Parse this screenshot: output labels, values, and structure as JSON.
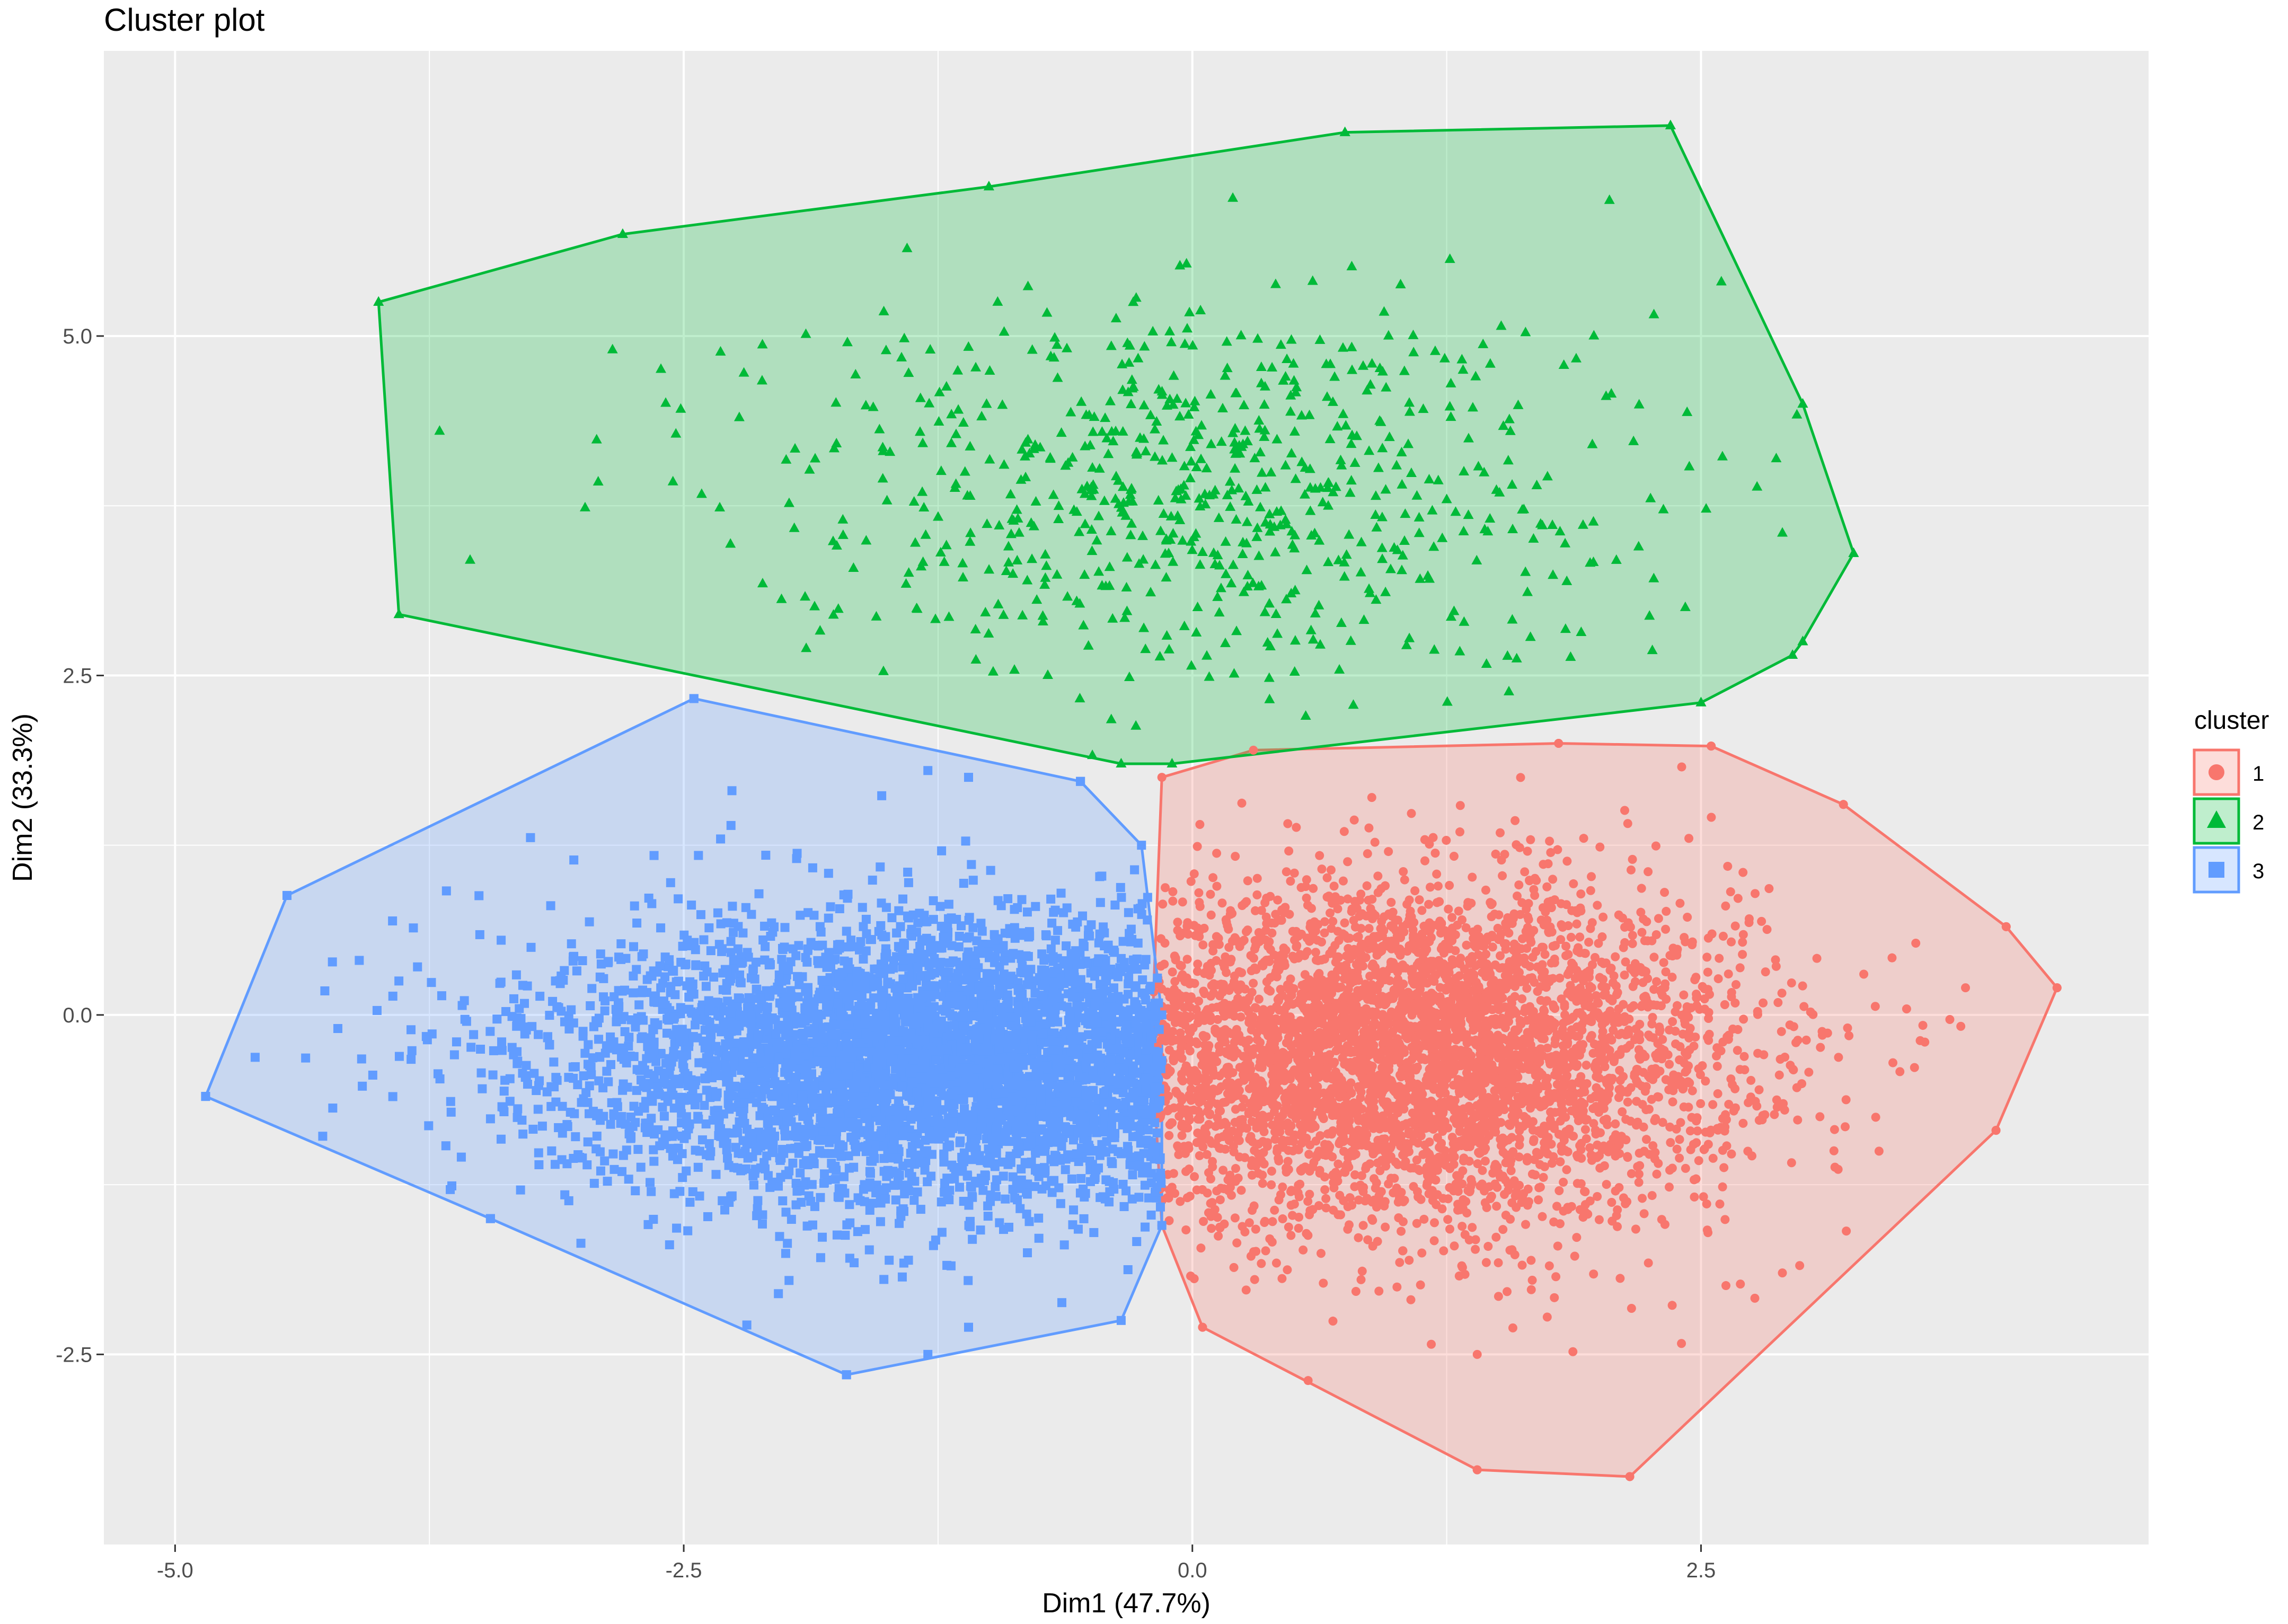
{
  "chart_data": {
    "type": "scatter",
    "title": "Cluster plot",
    "xlabel": "Dim1 (47.7%)",
    "ylabel": "Dim2 (33.3%)",
    "xlim": [
      -5.35,
      4.7
    ],
    "ylim": [
      -3.9,
      7.1
    ],
    "x_ticks": [
      -5.0,
      -2.5,
      0.0,
      2.5
    ],
    "x_tick_labels": [
      "-5.0",
      "-2.5",
      "0.0",
      "2.5"
    ],
    "y_ticks": [
      -2.5,
      0.0,
      2.5,
      5.0
    ],
    "y_tick_labels": [
      "-2.5",
      "0.0",
      "2.5",
      "5.0"
    ],
    "grid": true,
    "legend": {
      "title": "cluster",
      "position": "right",
      "entries": [
        "1",
        "2",
        "3"
      ]
    },
    "series": [
      {
        "name": "1",
        "color": "#F8766D",
        "marker": "circle",
        "hull": [
          [
            -0.15,
            1.75
          ],
          [
            0.3,
            1.95
          ],
          [
            1.8,
            2.0
          ],
          [
            2.55,
            1.98
          ],
          [
            3.2,
            1.55
          ],
          [
            4.0,
            0.65
          ],
          [
            4.25,
            0.2
          ],
          [
            3.95,
            -0.85
          ],
          [
            2.15,
            -3.4
          ],
          [
            1.4,
            -3.35
          ],
          [
            0.05,
            -2.3
          ],
          [
            -0.15,
            -1.55
          ],
          [
            -0.2,
            -0.2
          ]
        ],
        "center": [
          1.0,
          -0.3
        ],
        "spread": [
          0.85,
          0.62
        ],
        "point_count": 4500,
        "outliers": [
          [
            1.4,
            -2.5
          ],
          [
            2.15,
            -3.4
          ],
          [
            1.4,
            -3.35
          ],
          [
            0.05,
            -2.3
          ],
          [
            3.95,
            -0.85
          ],
          [
            4.25,
            0.2
          ],
          [
            4.0,
            0.65
          ],
          [
            3.2,
            1.55
          ],
          [
            2.55,
            1.98
          ],
          [
            1.8,
            2.0
          ],
          [
            3.6,
            -0.2
          ],
          [
            3.3,
            0.3
          ],
          [
            2.9,
            -1.9
          ],
          [
            3.8,
            0.2
          ]
        ]
      },
      {
        "name": "2",
        "color": "#00BA38",
        "marker": "triangle",
        "hull": [
          [
            -4.0,
            5.25
          ],
          [
            -2.8,
            5.75
          ],
          [
            -1.0,
            6.1
          ],
          [
            0.75,
            6.5
          ],
          [
            2.35,
            6.55
          ],
          [
            3.0,
            4.5
          ],
          [
            3.25,
            3.4
          ],
          [
            3.0,
            2.75
          ],
          [
            2.95,
            2.65
          ],
          [
            2.5,
            2.3
          ],
          [
            -0.1,
            1.85
          ],
          [
            -0.35,
            1.85
          ],
          [
            -3.9,
            2.95
          ]
        ],
        "center": [
          0.0,
          3.9
        ],
        "spread": [
          1.05,
          0.72
        ],
        "point_count": 700,
        "outliers": [
          [
            -4.0,
            5.25
          ],
          [
            -2.8,
            5.75
          ],
          [
            -1.0,
            6.1
          ],
          [
            0.75,
            6.5
          ],
          [
            2.35,
            6.55
          ],
          [
            3.0,
            4.5
          ],
          [
            3.25,
            3.4
          ],
          [
            3.0,
            2.75
          ],
          [
            2.5,
            2.3
          ],
          [
            -0.35,
            1.85
          ],
          [
            -3.9,
            2.95
          ],
          [
            -3.7,
            4.3
          ],
          [
            -3.55,
            3.35
          ],
          [
            -2.85,
            4.9
          ],
          [
            2.05,
            6.0
          ],
          [
            2.6,
            5.4
          ],
          [
            2.9,
            3.55
          ]
        ]
      },
      {
        "name": "3",
        "color": "#619CFF",
        "marker": "square",
        "hull": [
          [
            -4.45,
            0.88
          ],
          [
            -2.45,
            2.33
          ],
          [
            -0.55,
            1.72
          ],
          [
            -0.25,
            1.25
          ],
          [
            -0.15,
            0.0
          ],
          [
            -0.15,
            -1.55
          ],
          [
            -0.35,
            -2.25
          ],
          [
            -1.7,
            -2.65
          ],
          [
            -3.45,
            -1.5
          ],
          [
            -4.85,
            -0.6
          ]
        ],
        "center": [
          -1.1,
          -0.35
        ],
        "spread": [
          1.0,
          0.52
        ],
        "point_count": 4500,
        "outliers": [
          [
            -4.45,
            0.88
          ],
          [
            -2.45,
            2.33
          ],
          [
            -0.55,
            1.72
          ],
          [
            -1.7,
            -2.65
          ],
          [
            -3.45,
            -1.5
          ],
          [
            -4.85,
            -0.6
          ],
          [
            -1.3,
            1.8
          ],
          [
            -1.1,
            1.75
          ],
          [
            -4.2,
            -0.1
          ],
          [
            -3.9,
            0.25
          ],
          [
            -1.3,
            -2.5
          ],
          [
            -1.1,
            -2.3
          ]
        ]
      }
    ]
  }
}
